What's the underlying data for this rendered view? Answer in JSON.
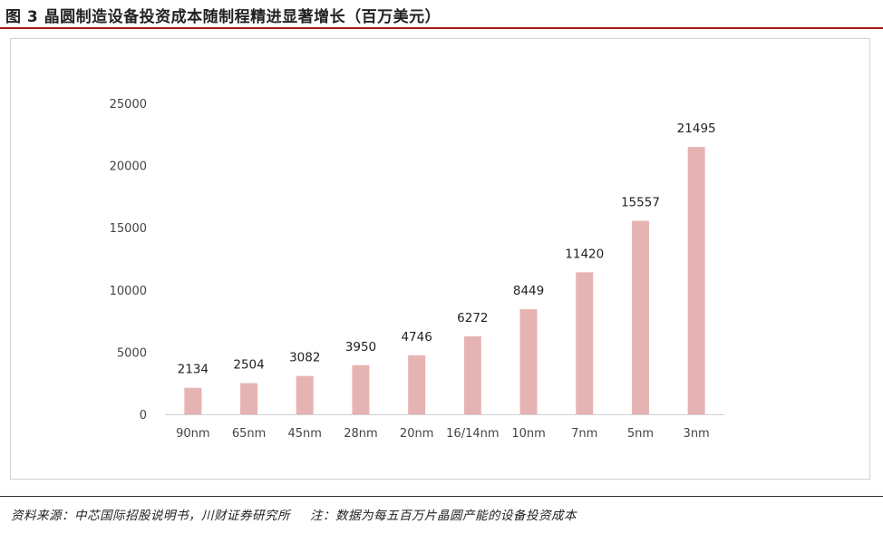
{
  "figure": {
    "title": "图 3 晶圆制造设备投资成本随制程精进显著增长（百万美元）",
    "source": "资料来源：中芯国际招股说明书，川财证券研究所",
    "note": "注：数据为每五百万片晶圆产能的设备投资成本"
  },
  "colors": {
    "bar": "#e6b3b3",
    "title_rule": "#a61b1b",
    "axis_text": "#444444"
  },
  "chart_data": {
    "type": "bar",
    "title": "",
    "xlabel": "",
    "ylabel": "",
    "categories": [
      "90nm",
      "65nm",
      "45nm",
      "28nm",
      "20nm",
      "16/14nm",
      "10nm",
      "7nm",
      "5nm",
      "3nm"
    ],
    "values": [
      2134,
      2504,
      3082,
      3950,
      4746,
      6272,
      8449,
      11420,
      15557,
      21495
    ],
    "data_labels": [
      "2134",
      "2504",
      "3082",
      "3950",
      "4746",
      "6272",
      "8449",
      "11420",
      "15557",
      "21495"
    ],
    "yticks": [
      0,
      5000,
      10000,
      15000,
      20000,
      25000
    ],
    "ytick_labels": [
      "0",
      "5000",
      "10000",
      "15000",
      "20000",
      "25000"
    ],
    "ylim": [
      0,
      25000
    ],
    "grid": false,
    "legend": "none"
  }
}
